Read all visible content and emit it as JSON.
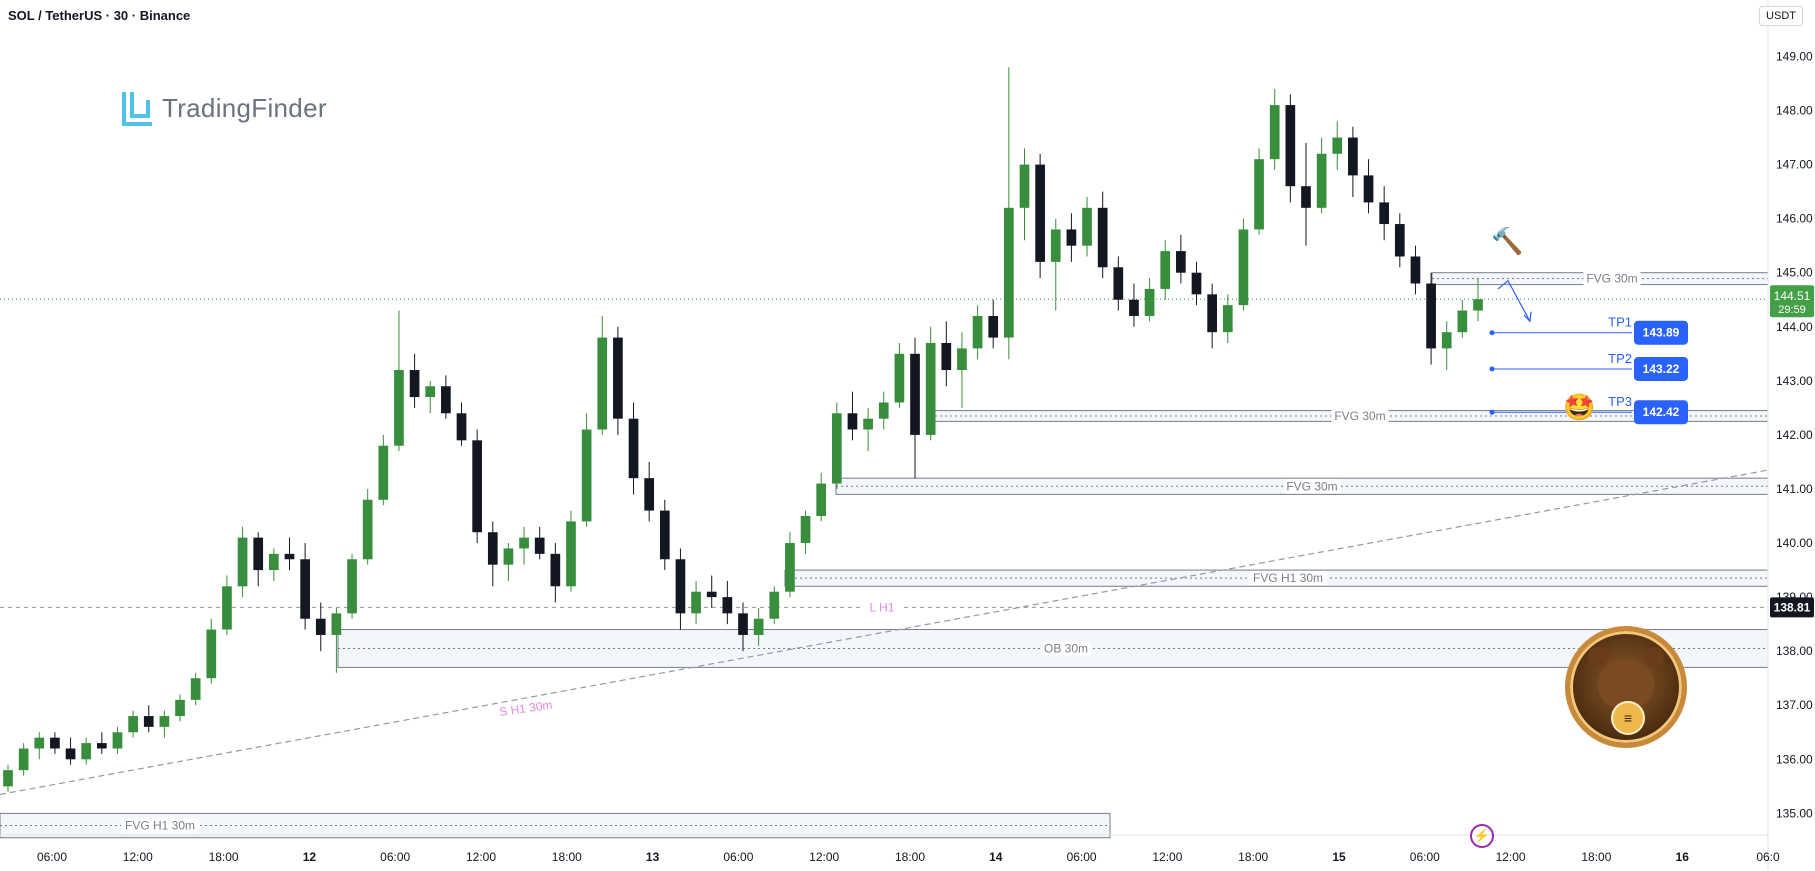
{
  "header": {
    "title": "SOL / TetherUS · 30 · Binance",
    "currency_button": "USDT"
  },
  "logo": {
    "text": "TradingFinder"
  },
  "colors": {
    "bull": "#388e3c",
    "bear": "#131722",
    "accent": "#2962ff",
    "last_price_bg": "#43a047",
    "zone_border": "#787b86",
    "zone_fill": "#eaf1f8",
    "trendline": "#9598a1",
    "liquidity_text": "#e08be0"
  },
  "chart_data": {
    "type": "candlestick",
    "symbol": "SOL / TetherUS",
    "interval": "30",
    "exchange": "Binance",
    "quote": "USDT",
    "ylim": [
      134.6,
      149.6
    ],
    "y_ticks": [
      "149.00",
      "148.00",
      "147.00",
      "146.00",
      "145.00",
      "144.00",
      "143.00",
      "142.00",
      "141.00",
      "140.00",
      "139.00",
      "138.00",
      "137.00",
      "136.00",
      "135.00"
    ],
    "x_ticks": [
      "06:00",
      "12:00",
      "18:00",
      "12",
      "06:00",
      "12:00",
      "18:00",
      "13",
      "06:00",
      "12:00",
      "18:00",
      "14",
      "06:00",
      "12:00",
      "18:00",
      "15",
      "06:00",
      "12:00",
      "18:00",
      "16",
      "06:0"
    ],
    "last_price": {
      "value": "144.51",
      "countdown": "29:59"
    },
    "marked_level": {
      "value": "138.81"
    },
    "zones": [
      {
        "label": "FVG 30m",
        "top": 145.0,
        "bottom": 144.78
      },
      {
        "label": "FVG 30m",
        "top": 142.45,
        "bottom": 142.25
      },
      {
        "label": "FVG 30m",
        "top": 141.2,
        "bottom": 140.9
      },
      {
        "label": "FVG H1 30m",
        "top": 139.5,
        "bottom": 139.2
      },
      {
        "label": "OB 30m",
        "top": 138.4,
        "bottom": 137.7
      },
      {
        "label": "FVG H1 30m",
        "top": 135.0,
        "bottom": 134.55
      }
    ],
    "liquidity": [
      {
        "label": "L H1",
        "value": 138.81
      },
      {
        "label": "S H1 30m",
        "value": 137.0
      }
    ],
    "targets": [
      {
        "label": "TP1",
        "value": "143.89"
      },
      {
        "label": "TP2",
        "value": "143.22"
      },
      {
        "label": "TP3",
        "value": "142.42"
      }
    ],
    "ohlc": [
      [
        135.5,
        135.9,
        135.4,
        135.8
      ],
      [
        135.8,
        136.3,
        135.7,
        136.2
      ],
      [
        136.2,
        136.5,
        136.0,
        136.4
      ],
      [
        136.4,
        136.5,
        136.1,
        136.2
      ],
      [
        136.2,
        136.4,
        135.9,
        136.0
      ],
      [
        136.0,
        136.4,
        135.9,
        136.3
      ],
      [
        136.3,
        136.5,
        136.1,
        136.2
      ],
      [
        136.2,
        136.6,
        136.1,
        136.5
      ],
      [
        136.5,
        136.9,
        136.4,
        136.8
      ],
      [
        136.8,
        137.0,
        136.5,
        136.6
      ],
      [
        136.6,
        136.9,
        136.4,
        136.8
      ],
      [
        136.8,
        137.2,
        136.7,
        137.1
      ],
      [
        137.1,
        137.6,
        137.0,
        137.5
      ],
      [
        137.5,
        138.6,
        137.4,
        138.4
      ],
      [
        138.4,
        139.4,
        138.3,
        139.2
      ],
      [
        139.2,
        140.3,
        139.0,
        140.1
      ],
      [
        140.1,
        140.2,
        139.2,
        139.5
      ],
      [
        139.5,
        139.9,
        139.3,
        139.8
      ],
      [
        139.8,
        140.1,
        139.5,
        139.7
      ],
      [
        139.7,
        140.0,
        138.4,
        138.6
      ],
      [
        138.6,
        138.9,
        138.0,
        138.3
      ],
      [
        138.3,
        138.8,
        137.6,
        138.7
      ],
      [
        138.7,
        139.8,
        138.6,
        139.7
      ],
      [
        139.7,
        141.0,
        139.6,
        140.8
      ],
      [
        140.8,
        142.0,
        140.7,
        141.8
      ],
      [
        141.8,
        144.3,
        141.7,
        143.2
      ],
      [
        143.2,
        143.5,
        142.5,
        142.7
      ],
      [
        142.7,
        143.0,
        142.4,
        142.9
      ],
      [
        142.9,
        143.1,
        142.3,
        142.4
      ],
      [
        142.4,
        142.6,
        141.8,
        141.9
      ],
      [
        141.9,
        142.1,
        140.0,
        140.2
      ],
      [
        140.2,
        140.4,
        139.2,
        139.6
      ],
      [
        139.6,
        140.0,
        139.3,
        139.9
      ],
      [
        139.9,
        140.3,
        139.6,
        140.1
      ],
      [
        140.1,
        140.3,
        139.7,
        139.8
      ],
      [
        139.8,
        140.0,
        138.9,
        139.2
      ],
      [
        139.2,
        140.6,
        139.1,
        140.4
      ],
      [
        140.4,
        142.4,
        140.3,
        142.1
      ],
      [
        142.1,
        144.2,
        142.0,
        143.8
      ],
      [
        143.8,
        144.0,
        142.0,
        142.3
      ],
      [
        142.3,
        142.6,
        140.9,
        141.2
      ],
      [
        141.2,
        141.5,
        140.4,
        140.6
      ],
      [
        140.6,
        140.8,
        139.5,
        139.7
      ],
      [
        139.7,
        139.9,
        138.4,
        138.7
      ],
      [
        138.7,
        139.3,
        138.5,
        139.1
      ],
      [
        139.1,
        139.4,
        138.8,
        139.0
      ],
      [
        139.0,
        139.3,
        138.5,
        138.7
      ],
      [
        138.7,
        138.9,
        138.0,
        138.3
      ],
      [
        138.3,
        138.8,
        138.1,
        138.6
      ],
      [
        138.6,
        139.2,
        138.5,
        139.1
      ],
      [
        139.1,
        140.2,
        139.0,
        140.0
      ],
      [
        140.0,
        140.6,
        139.8,
        140.5
      ],
      [
        140.5,
        141.3,
        140.4,
        141.1
      ],
      [
        141.1,
        142.6,
        141.0,
        142.4
      ],
      [
        142.4,
        142.8,
        141.9,
        142.1
      ],
      [
        142.1,
        142.5,
        141.7,
        142.3
      ],
      [
        142.3,
        142.8,
        142.1,
        142.6
      ],
      [
        142.6,
        143.7,
        142.5,
        143.5
      ],
      [
        143.5,
        143.8,
        141.2,
        142.0
      ],
      [
        142.0,
        144.0,
        141.9,
        143.7
      ],
      [
        143.7,
        144.1,
        142.9,
        143.2
      ],
      [
        143.2,
        143.9,
        142.5,
        143.6
      ],
      [
        143.6,
        144.4,
        143.4,
        144.2
      ],
      [
        144.2,
        144.5,
        143.6,
        143.8
      ],
      [
        143.8,
        148.8,
        143.4,
        146.2
      ],
      [
        146.2,
        147.3,
        145.6,
        147.0
      ],
      [
        147.0,
        147.2,
        144.9,
        145.2
      ],
      [
        145.2,
        146.0,
        144.3,
        145.8
      ],
      [
        145.8,
        146.1,
        145.2,
        145.5
      ],
      [
        145.5,
        146.4,
        145.3,
        146.2
      ],
      [
        146.2,
        146.5,
        144.9,
        145.1
      ],
      [
        145.1,
        145.3,
        144.3,
        144.5
      ],
      [
        144.5,
        144.8,
        144.0,
        144.2
      ],
      [
        144.2,
        144.9,
        144.1,
        144.7
      ],
      [
        144.7,
        145.6,
        144.5,
        145.4
      ],
      [
        145.4,
        145.7,
        144.8,
        145.0
      ],
      [
        145.0,
        145.2,
        144.4,
        144.6
      ],
      [
        144.6,
        144.8,
        143.6,
        143.9
      ],
      [
        143.9,
        144.6,
        143.7,
        144.4
      ],
      [
        144.4,
        146.0,
        144.3,
        145.8
      ],
      [
        145.8,
        147.3,
        145.7,
        147.1
      ],
      [
        147.1,
        148.4,
        146.9,
        148.1
      ],
      [
        148.1,
        148.3,
        146.3,
        146.6
      ],
      [
        146.6,
        147.4,
        145.5,
        146.2
      ],
      [
        146.2,
        147.5,
        146.1,
        147.2
      ],
      [
        147.2,
        147.8,
        146.9,
        147.5
      ],
      [
        147.5,
        147.7,
        146.4,
        146.8
      ],
      [
        146.8,
        147.1,
        146.1,
        146.3
      ],
      [
        146.3,
        146.6,
        145.6,
        145.9
      ],
      [
        145.9,
        146.1,
        145.1,
        145.3
      ],
      [
        145.3,
        145.5,
        144.6,
        144.8
      ],
      [
        144.8,
        145.0,
        143.3,
        143.6
      ],
      [
        143.6,
        144.1,
        143.2,
        143.9
      ],
      [
        143.9,
        144.5,
        143.8,
        144.3
      ],
      [
        144.3,
        144.9,
        144.1,
        144.51
      ]
    ]
  }
}
